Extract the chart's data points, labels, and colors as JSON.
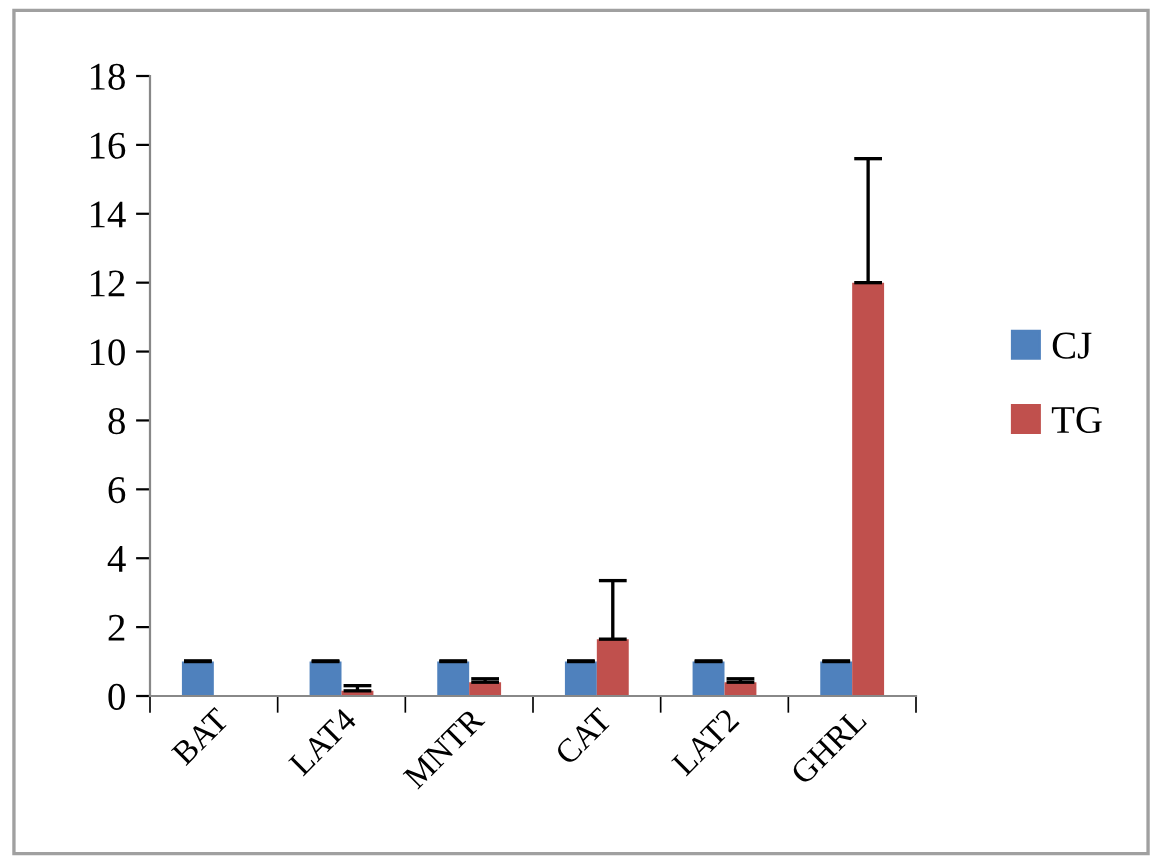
{
  "chart_data": {
    "type": "bar",
    "categories": [
      "BAT",
      "LAT4",
      "MNTR",
      "CAT",
      "LAT2",
      "GHRL"
    ],
    "series": [
      {
        "name": "CJ",
        "color": "#4f81bd",
        "values": [
          1,
          1,
          1,
          1,
          1,
          1
        ],
        "errors": [
          0.02,
          0.02,
          0.02,
          0.02,
          0.02,
          0.02
        ]
      },
      {
        "name": "TG",
        "color": "#c0504d",
        "values": [
          0,
          0.15,
          0.4,
          1.65,
          0.4,
          12.0
        ],
        "errors": [
          null,
          0.15,
          0.1,
          1.7,
          0.1,
          3.6
        ]
      }
    ],
    "ylim": [
      0,
      18
    ],
    "yticks": [
      0,
      2,
      4,
      6,
      8,
      10,
      12,
      14,
      16,
      18
    ],
    "grid": false,
    "legend": "right"
  }
}
